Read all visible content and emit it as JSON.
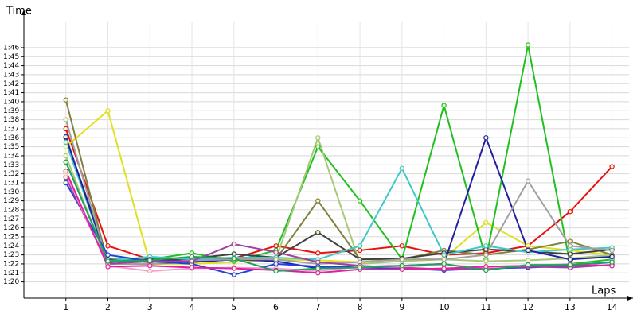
{
  "chart_data": {
    "type": "line",
    "y_label": "Time",
    "x_label": "Laps",
    "x": [
      1,
      2,
      3,
      4,
      5,
      6,
      7,
      8,
      9,
      10,
      11,
      12,
      13,
      14
    ],
    "xlim": [
      0,
      14.5
    ],
    "xticks": [
      1,
      2,
      3,
      4,
      5,
      6,
      7,
      8,
      9,
      10,
      11,
      12,
      13,
      14
    ],
    "ylim": [
      78.2,
      109.7
    ],
    "yticks": [
      {
        "value": 80,
        "label": "1:20"
      },
      {
        "value": 81,
        "label": "1:21"
      },
      {
        "value": 82,
        "label": "1:22"
      },
      {
        "value": 83,
        "label": "1:23"
      },
      {
        "value": 84,
        "label": "1:24"
      },
      {
        "value": 85,
        "label": "1:25"
      },
      {
        "value": 86,
        "label": "1:26"
      },
      {
        "value": 87,
        "label": "1:27"
      },
      {
        "value": 88,
        "label": "1:28"
      },
      {
        "value": 89,
        "label": "1:29"
      },
      {
        "value": 90,
        "label": "1:30"
      },
      {
        "value": 91,
        "label": "1:31"
      },
      {
        "value": 92,
        "label": "1:32"
      },
      {
        "value": 93,
        "label": "1:33"
      },
      {
        "value": 94,
        "label": "1:34"
      },
      {
        "value": 95,
        "label": "1:35"
      },
      {
        "value": 96,
        "label": "1:36"
      },
      {
        "value": 97,
        "label": "1:37"
      },
      {
        "value": 98,
        "label": "1:38"
      },
      {
        "value": 99,
        "label": "1:39"
      },
      {
        "value": 100,
        "label": "1:40"
      },
      {
        "value": 101,
        "label": "1:41"
      },
      {
        "value": 102,
        "label": "1:42"
      },
      {
        "value": 103,
        "label": "1:43"
      },
      {
        "value": 104,
        "label": "1:44"
      },
      {
        "value": 105,
        "label": "1:45"
      },
      {
        "value": 106,
        "label": "1:46"
      }
    ],
    "grid": true,
    "series": [
      {
        "color": "#e81010",
        "values": [
          97,
          84,
          82.5,
          82.5,
          82.6,
          84,
          83.2,
          83.5,
          84,
          83,
          83.2,
          84,
          87.8,
          92.8
        ]
      },
      {
        "color": "#e0e020",
        "values": [
          95,
          99,
          82,
          82,
          82.2,
          82.5,
          82.4,
          82.2,
          82.5,
          82.6,
          86.6,
          84,
          83.5,
          83
        ]
      },
      {
        "color": "#20c020",
        "values": [
          93.3,
          82.5,
          82.5,
          83.2,
          82.3,
          83.5,
          95,
          89,
          82.5,
          99.6,
          82.5,
          106.3,
          82,
          82.5
        ]
      },
      {
        "color": "#a8c878",
        "values": [
          94,
          82,
          82,
          82.2,
          82.5,
          82.5,
          96,
          82,
          82.3,
          82.5,
          82.3,
          82.4,
          82.6,
          83
        ]
      },
      {
        "color": "#808040",
        "values": [
          100.2,
          82,
          82,
          82.2,
          82.5,
          82.5,
          89,
          82.5,
          82.5,
          83.5,
          83,
          83.6,
          84.5,
          83
        ]
      },
      {
        "color": "#404040",
        "values": [
          96,
          82.5,
          82.2,
          82.6,
          83.1,
          82.7,
          85.5,
          82.5,
          82.6,
          83.2,
          83.6,
          83.4,
          83.1,
          83.6
        ]
      },
      {
        "color": "#40c8c8",
        "values": [
          95.5,
          82.3,
          82.8,
          82.5,
          82.7,
          82.7,
          82.5,
          84,
          92.6,
          83,
          84,
          83.3,
          83.6,
          83.8
        ]
      },
      {
        "color": "#2020a0",
        "values": [
          96.1,
          82.2,
          82.5,
          82.2,
          82.5,
          82.3,
          81.5,
          81.7,
          81.8,
          82,
          96,
          83.5,
          82.5,
          82.8
        ]
      },
      {
        "color": "#a0a0a0",
        "values": [
          98,
          82,
          82,
          82.4,
          82.5,
          82.5,
          82,
          82.2,
          82.5,
          82.5,
          83,
          91.2,
          84,
          83.5
        ]
      },
      {
        "color": "#2040e0",
        "values": [
          91,
          83,
          82.3,
          82,
          80.8,
          82,
          81.7,
          81.6,
          81.5,
          81.3,
          81.5,
          81.6,
          81.8,
          82.2
        ]
      },
      {
        "color": "#a040a0",
        "values": [
          91.6,
          82,
          82.3,
          82.3,
          84.2,
          83.3,
          82.2,
          81.8,
          81.6,
          81.4,
          81.5,
          81.7,
          81.6,
          81.9
        ]
      },
      {
        "color": "#f0a0d0",
        "values": [
          92,
          81.8,
          81.2,
          81.5,
          81.6,
          81.5,
          81.2,
          81.7,
          81.7,
          81.9,
          81.6,
          81.8,
          82,
          81.8
        ]
      },
      {
        "color": "#e020a0",
        "values": [
          92.3,
          81.7,
          81.8,
          81.6,
          81.5,
          81.3,
          81,
          81.4,
          81.4,
          81.5,
          81.7,
          81.8,
          81.9,
          81.8
        ]
      },
      {
        "color": "#20a060",
        "values": [
          93.3,
          82.3,
          82.4,
          82.8,
          82.6,
          81.2,
          81.5,
          81.6,
          81.8,
          82,
          81.3,
          81.9,
          81.9,
          82.2
        ]
      }
    ]
  }
}
